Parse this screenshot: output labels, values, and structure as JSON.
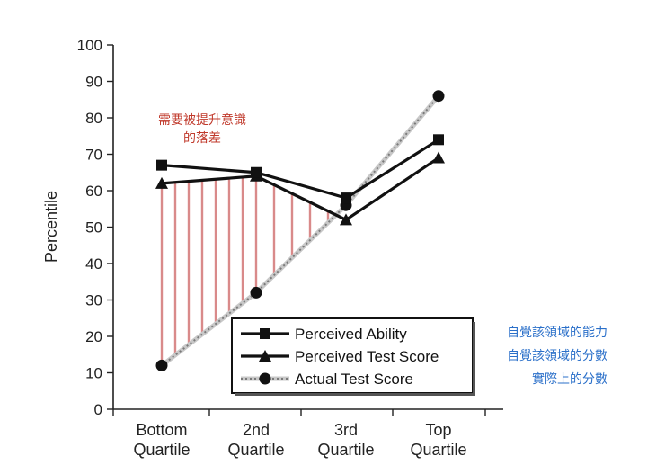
{
  "chart_data": {
    "type": "line",
    "categories": [
      "Bottom\nQuartile",
      "2nd\nQuartile",
      "3rd\nQuartile",
      "Top\nQuartile"
    ],
    "series": [
      {
        "name": "Perceived Ability",
        "values": [
          67,
          65,
          58,
          74
        ],
        "marker": "square",
        "style": "solid",
        "color": "#111111"
      },
      {
        "name": "Perceived Test Score",
        "values": [
          62,
          64,
          52,
          69
        ],
        "marker": "triangle",
        "style": "solid",
        "color": "#111111"
      },
      {
        "name": "Actual Test Score",
        "values": [
          12,
          32,
          56,
          86
        ],
        "marker": "circle",
        "style": "dotted",
        "color": "#9a9a9a"
      }
    ],
    "ylabel": "Percentile",
    "xlabel": "",
    "ylim": [
      0,
      100
    ],
    "yticks": [
      0,
      10,
      20,
      30,
      40,
      50,
      60,
      70,
      80,
      90,
      100
    ],
    "gap_color": "#d98a8a"
  },
  "annotations": {
    "gap_note_line1": "需要被提升意識",
    "gap_note_line2": "的落差",
    "legend_note_1": "自覺該領域的能力",
    "legend_note_2": "自覺該領域的分數",
    "legend_note_3": "實際上的分數"
  }
}
